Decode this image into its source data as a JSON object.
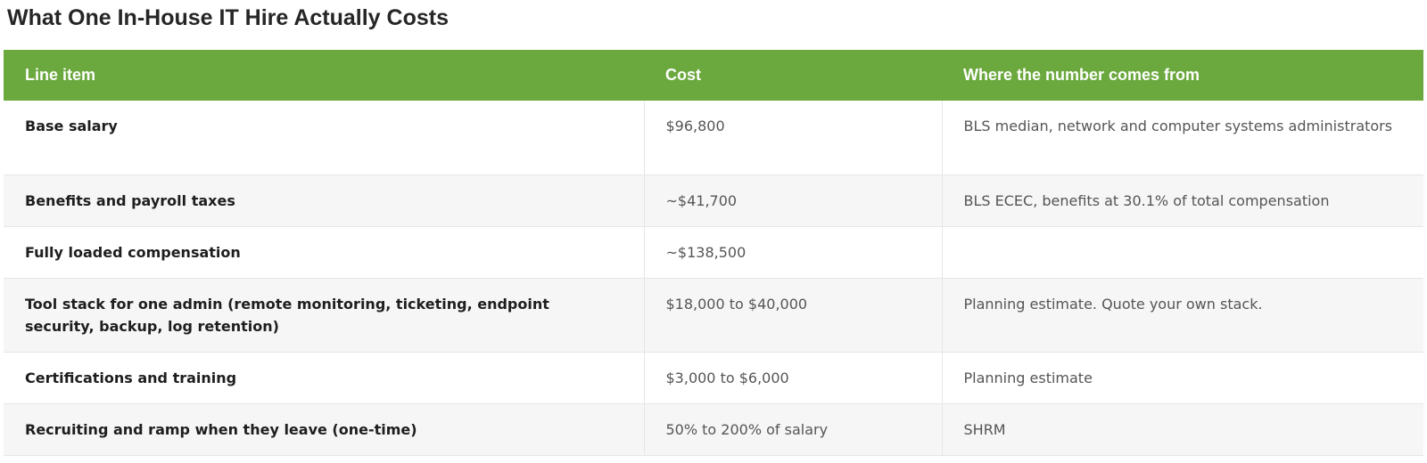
{
  "title": "What One In-House IT Hire Actually Costs",
  "table": {
    "headers": {
      "line_item": "Line item",
      "cost": "Cost",
      "source": "Where the number comes from"
    },
    "rows": [
      {
        "line_item": "Base salary",
        "cost": "$96,800",
        "source": "BLS median, network and computer systems administrators"
      },
      {
        "line_item": "Benefits and payroll taxes",
        "cost": "~$41,700",
        "source": "BLS ECEC, benefits at 30.1% of total compensation"
      },
      {
        "line_item": "Fully loaded compensation",
        "cost": "~$138,500",
        "source": ""
      },
      {
        "line_item": "Tool stack for one admin (remote monitoring, ticketing, endpoint security, backup, log retention)",
        "cost": "$18,000 to $40,000",
        "source": "Planning estimate. Quote your own stack."
      },
      {
        "line_item": "Certifications and training",
        "cost": "$3,000 to $6,000",
        "source": "Planning estimate"
      },
      {
        "line_item": "Recruiting and ramp when they leave (one-time)",
        "cost": "50% to 200% of salary",
        "source": "SHRM"
      }
    ]
  },
  "colors": {
    "header_bg": "#6ba83e",
    "header_text": "#ffffff",
    "stripe": "#f6f6f6"
  }
}
